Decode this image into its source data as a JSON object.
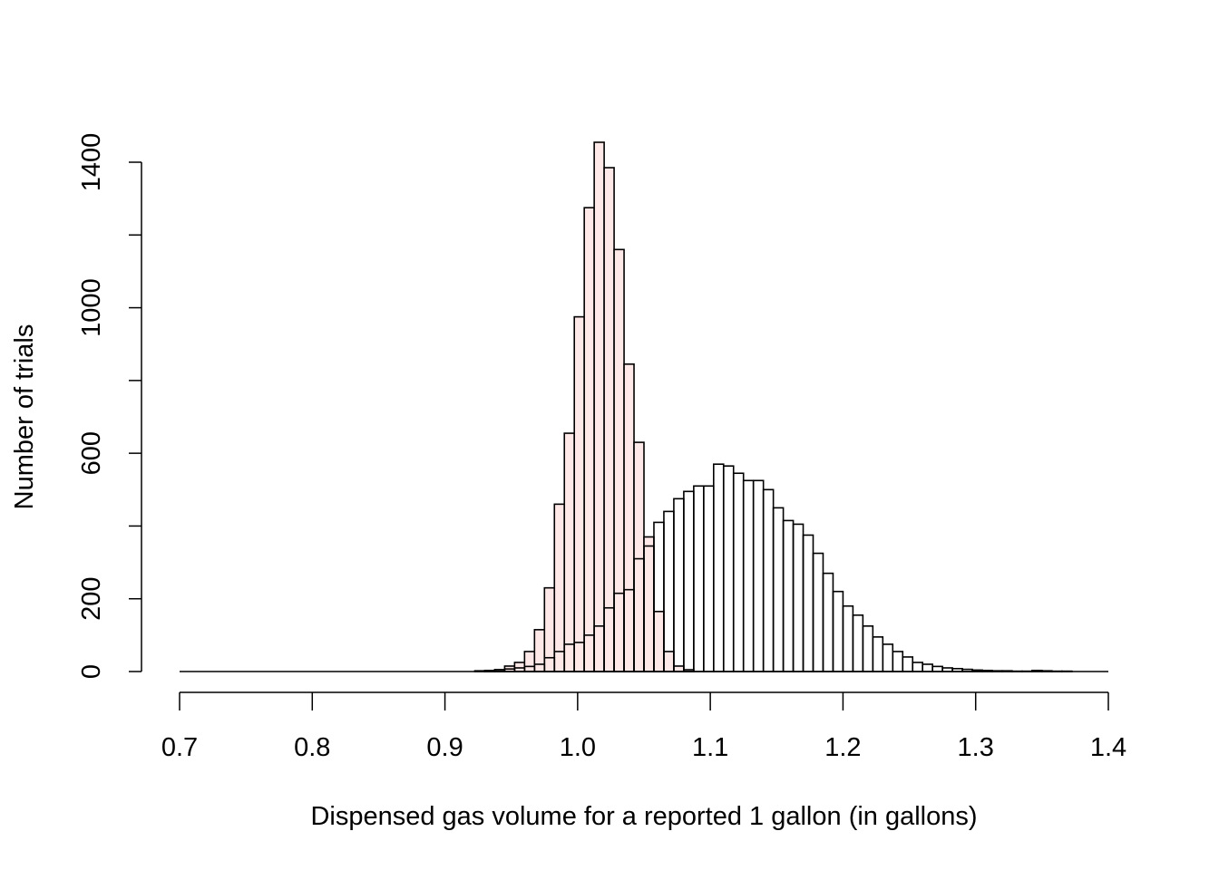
{
  "chart_data": {
    "type": "histogram",
    "title": "",
    "xlabel": "Dispensed gas volume for a reported 1 gallon (in gallons)",
    "ylabel": "Number of trials",
    "xlim": [
      0.7,
      1.4
    ],
    "ylim": [
      0,
      1400
    ],
    "x_ticks": [
      "0.7",
      "0.8",
      "0.9",
      "1.0",
      "1.1",
      "1.2",
      "1.3",
      "1.4"
    ],
    "y_ticks": [
      "0",
      "200",
      "600",
      "1000",
      "1400"
    ],
    "bin_width": 0.0075,
    "colors": {
      "series_a_fill": "#ffe8e8",
      "series_b_fill": "#ffffff",
      "stroke": "#000000"
    },
    "series": [
      {
        "start": 0.93,
        "values": [
          2,
          5,
          15,
          25,
          55,
          115,
          230,
          460,
          655,
          975,
          1275,
          1480,
          1385,
          1160,
          845,
          630,
          370,
          165,
          55,
          15,
          5
        ]
      },
      {
        "start": 0.9225,
        "values": [
          2,
          3,
          5,
          7,
          10,
          14,
          20,
          38,
          55,
          75,
          80,
          100,
          125,
          175,
          215,
          225,
          310,
          345,
          410,
          440,
          475,
          495,
          510,
          510,
          570,
          565,
          545,
          525,
          525,
          500,
          450,
          415,
          405,
          375,
          325,
          270,
          220,
          180,
          155,
          125,
          95,
          75,
          55,
          40,
          25,
          20,
          14,
          10,
          8,
          6,
          4,
          3,
          2,
          2,
          1,
          1,
          3,
          2,
          1,
          1
        ]
      }
    ]
  }
}
